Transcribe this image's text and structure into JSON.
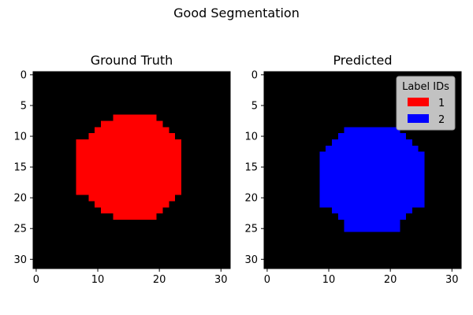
{
  "figure": {
    "suptitle": "Good Segmentation"
  },
  "chart_data": [
    {
      "type": "heatmap",
      "title": "Ground Truth",
      "xlabel": "",
      "ylabel": "",
      "grid": false,
      "image_size": [
        32,
        32
      ],
      "x_ticks": [
        0,
        10,
        20,
        30
      ],
      "y_ticks": [
        0,
        5,
        10,
        15,
        20,
        25,
        30
      ],
      "xlim": [
        -0.5,
        31.5
      ],
      "ylim": [
        31.5,
        -0.5
      ],
      "background_color": "#000000",
      "label_colors": {
        "1": "#ff0000",
        "2": "#0000ff"
      },
      "mask": {
        "label": 1,
        "row_spans": [
          [
            7,
            13,
            19
          ],
          [
            8,
            11,
            20
          ],
          [
            9,
            10,
            21
          ],
          [
            10,
            9,
            22
          ],
          [
            11,
            7,
            23
          ],
          [
            12,
            7,
            23
          ],
          [
            13,
            7,
            23
          ],
          [
            14,
            7,
            23
          ],
          [
            15,
            7,
            23
          ],
          [
            16,
            7,
            23
          ],
          [
            17,
            7,
            23
          ],
          [
            18,
            7,
            23
          ],
          [
            19,
            7,
            23
          ],
          [
            20,
            9,
            22
          ],
          [
            21,
            10,
            21
          ],
          [
            22,
            11,
            20
          ],
          [
            23,
            13,
            19
          ]
        ]
      }
    },
    {
      "type": "heatmap",
      "title": "Predicted",
      "xlabel": "",
      "ylabel": "",
      "grid": false,
      "image_size": [
        32,
        32
      ],
      "x_ticks": [
        0,
        10,
        20,
        30
      ],
      "y_ticks": [
        0,
        5,
        10,
        15,
        20,
        25,
        30
      ],
      "xlim": [
        -0.5,
        31.5
      ],
      "ylim": [
        31.5,
        -0.5
      ],
      "background_color": "#000000",
      "label_colors": {
        "1": "#ff0000",
        "2": "#0000ff"
      },
      "mask": {
        "label": 2,
        "row_spans": [
          [
            9,
            13,
            21
          ],
          [
            10,
            12,
            22
          ],
          [
            11,
            11,
            23
          ],
          [
            12,
            10,
            24
          ],
          [
            13,
            9,
            25
          ],
          [
            14,
            9,
            25
          ],
          [
            15,
            9,
            25
          ],
          [
            16,
            9,
            25
          ],
          [
            17,
            9,
            25
          ],
          [
            18,
            9,
            25
          ],
          [
            19,
            9,
            25
          ],
          [
            20,
            9,
            25
          ],
          [
            21,
            9,
            25
          ],
          [
            22,
            11,
            23
          ],
          [
            23,
            12,
            22
          ],
          [
            24,
            13,
            21
          ],
          [
            25,
            13,
            21
          ]
        ]
      },
      "legend": {
        "title": "Label IDs",
        "placement": "top-right",
        "entries": [
          {
            "label": "1",
            "color": "#ff0000"
          },
          {
            "label": "2",
            "color": "#0000ff"
          }
        ]
      }
    }
  ]
}
